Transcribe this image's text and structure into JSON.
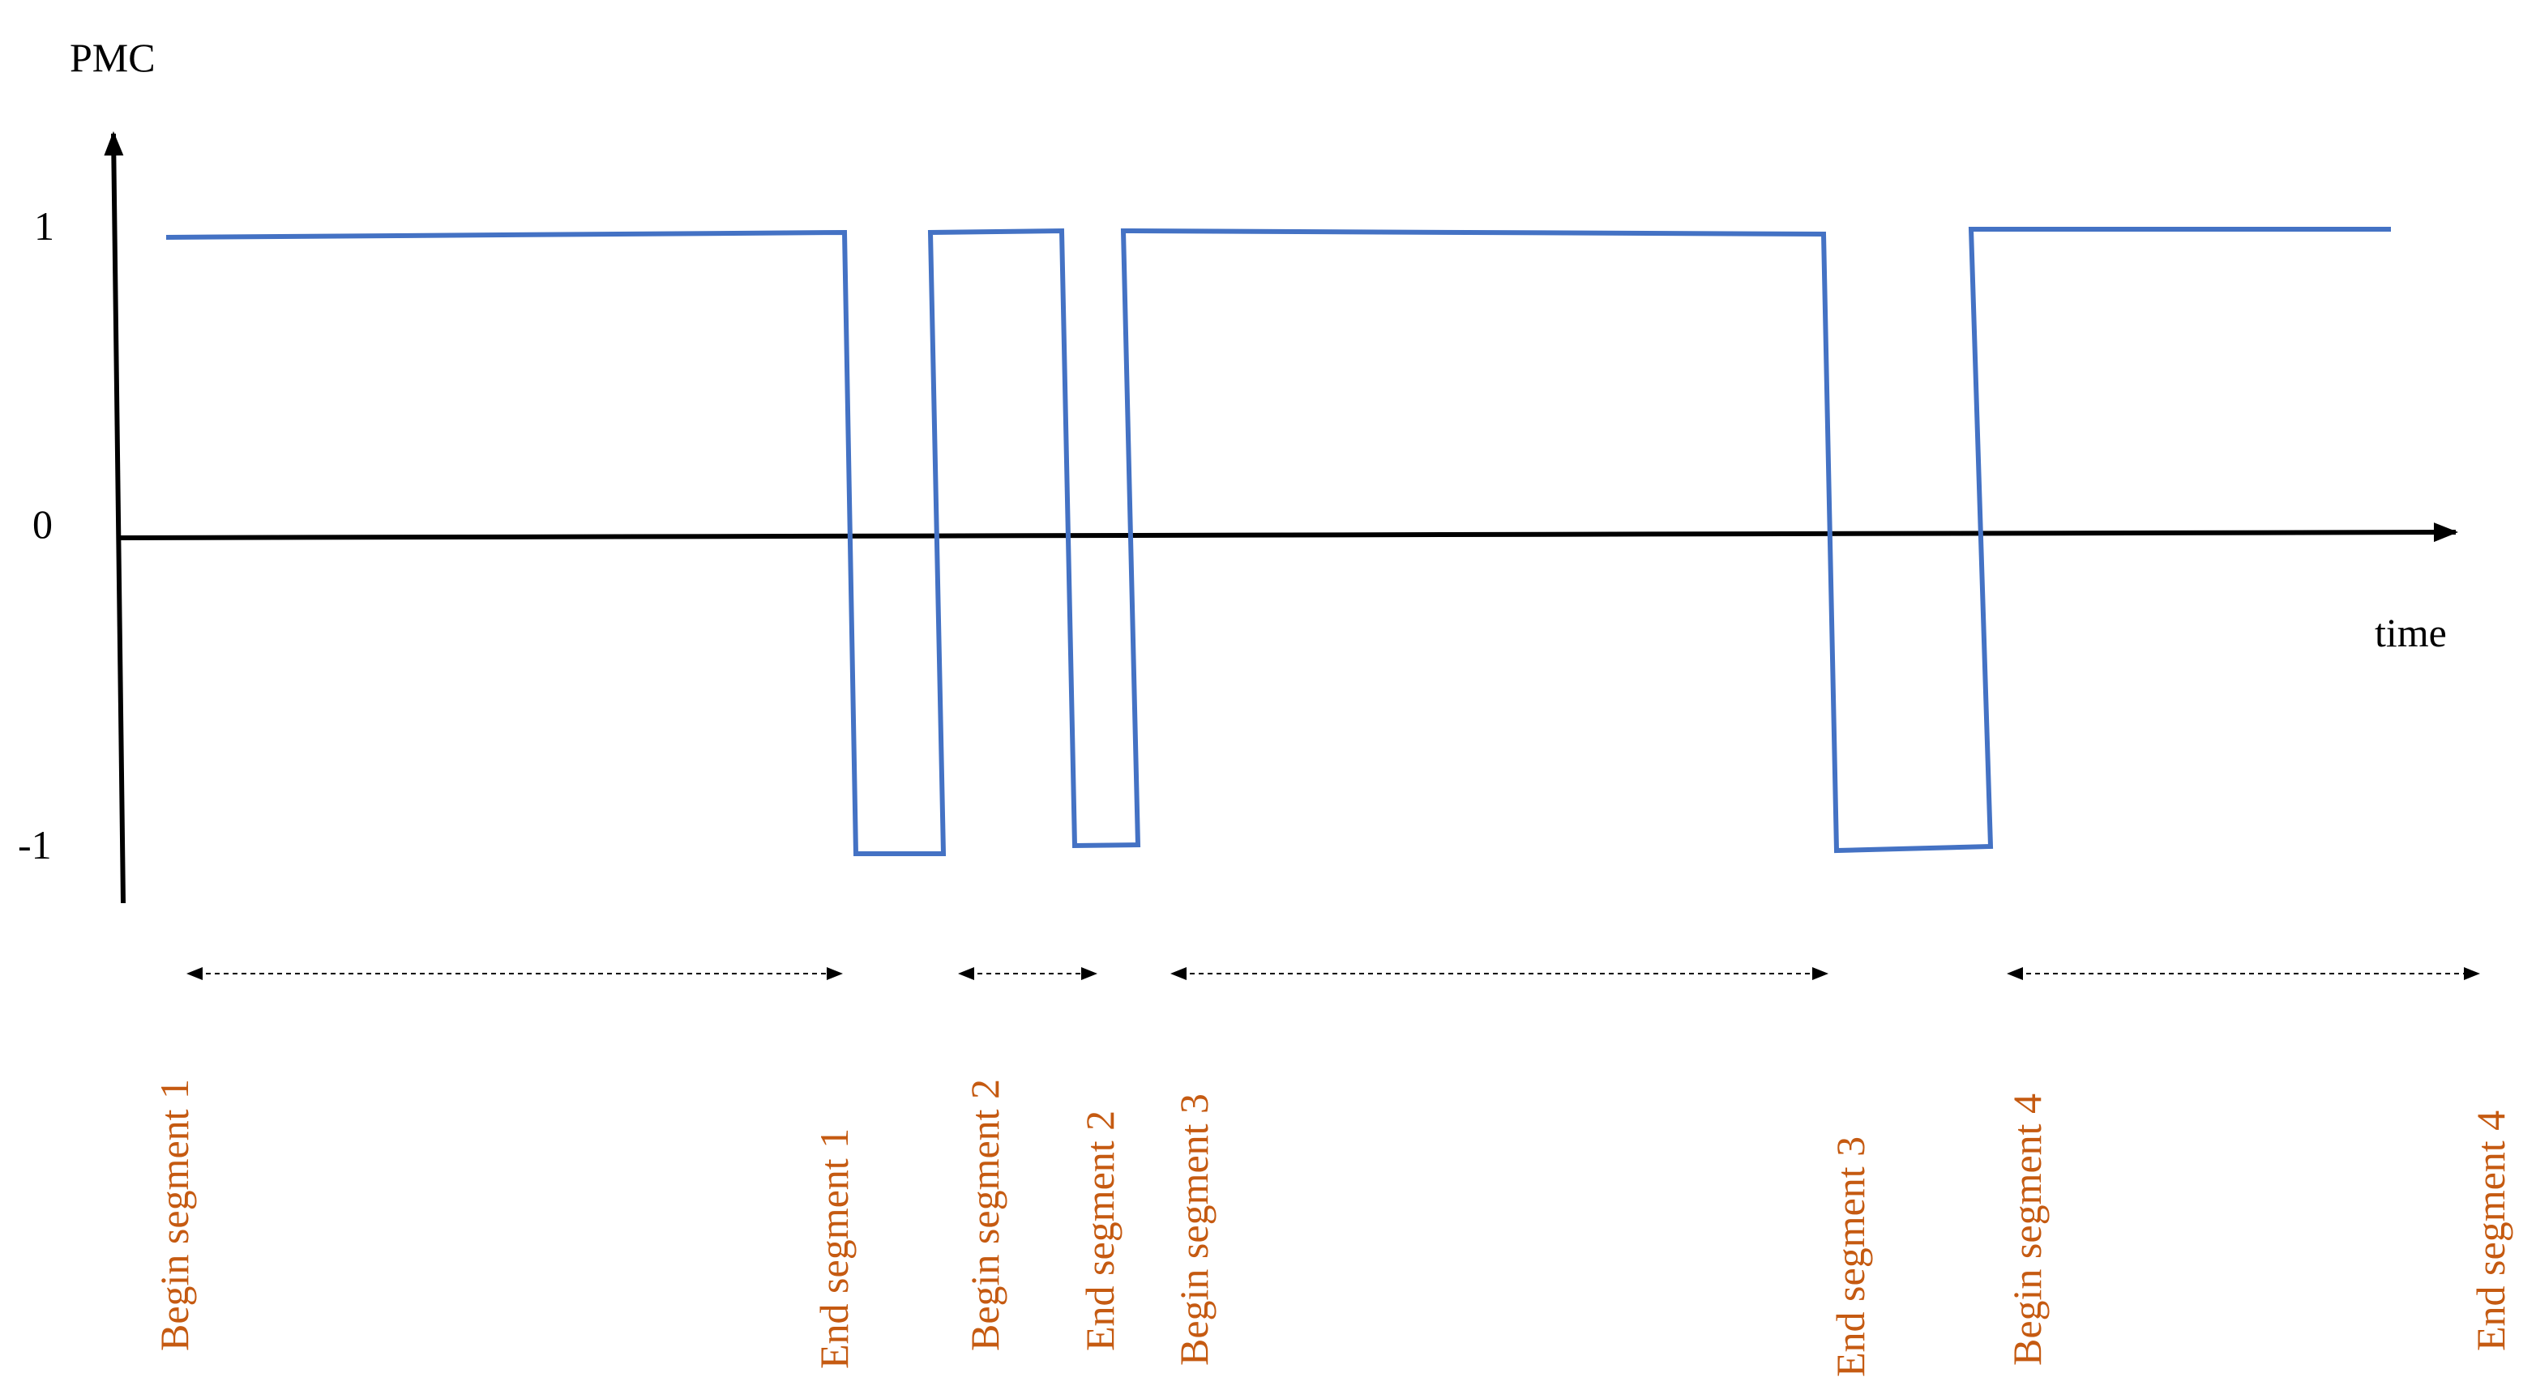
{
  "axes": {
    "y_label": "PMC",
    "x_label": "time",
    "y_ticks": [
      "1",
      "0",
      "-1"
    ]
  },
  "signal": {
    "levels": [
      1,
      -1,
      1,
      -1,
      1,
      -1,
      1
    ],
    "description_points": [
      {
        "t": 0,
        "v": 1
      },
      {
        "t": 1,
        "v": 1
      },
      {
        "t": 1,
        "v": -1
      },
      {
        "t": 2,
        "v": -1
      },
      {
        "t": 2,
        "v": 1
      },
      {
        "t": 3,
        "v": 1
      },
      {
        "t": 3,
        "v": -1
      },
      {
        "t": 4,
        "v": -1
      },
      {
        "t": 4,
        "v": 1
      },
      {
        "t": 5,
        "v": 1
      },
      {
        "t": 5,
        "v": -1
      },
      {
        "t": 6,
        "v": -1
      },
      {
        "t": 6,
        "v": 1
      },
      {
        "t": 7,
        "v": 1
      }
    ]
  },
  "segments": [
    {
      "begin": "Begin segment 1",
      "end": "End segment 1"
    },
    {
      "begin": "Begin segment 2",
      "end": "End segment 2"
    },
    {
      "begin": "Begin segment 3",
      "end": "End segment 3"
    },
    {
      "begin": "Begin segment 4",
      "end": "End segment 4"
    }
  ],
  "colors": {
    "signal": "#4472C4",
    "label": "#C55A11",
    "axis": "#000000"
  }
}
